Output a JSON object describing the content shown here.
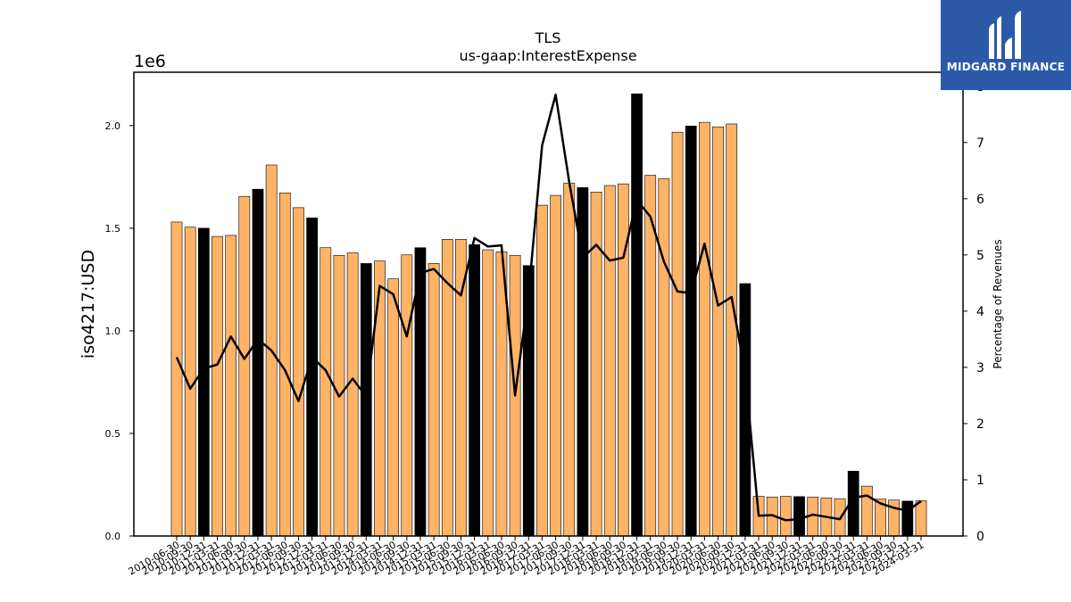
{
  "chart_data": {
    "type": "bar",
    "title": "TLS",
    "subtitle": "us-gaap:InterestExpense",
    "ylabel": "iso4217:USD",
    "y_multiplier": "1e6",
    "y2label": "Percentage of Revenues",
    "ylim": [
      0,
      2260000
    ],
    "y2lim": [
      0,
      8.25
    ],
    "yticks": [
      "0.0",
      "0.5",
      "1.0",
      "1.5",
      "2.0"
    ],
    "y2ticks": [
      "0",
      "1",
      "2",
      "3",
      "4",
      "5",
      "6",
      "7",
      "8"
    ],
    "categories": [
      "2010-06-30",
      "2010-09-30",
      "2010-12-31",
      "2011-03-31",
      "2011-06-30",
      "2011-09-30",
      "2011-12-31",
      "2012-03-31",
      "2012-06-30",
      "2012-09-30",
      "2012-12-31",
      "2013-03-31",
      "2013-06-30",
      "2013-09-30",
      "2013-12-31",
      "2014-03-31",
      "2014-06-30",
      "2014-09-30",
      "2014-12-31",
      "2015-03-31",
      "2015-06-30",
      "2015-09-30",
      "2015-12-31",
      "2016-03-31",
      "2016-06-30",
      "2016-09-30",
      "2016-12-31",
      "2017-03-31",
      "2017-06-30",
      "2017-09-30",
      "2017-12-31",
      "2018-03-31",
      "2018-06-30",
      "2018-09-30",
      "2018-12-31",
      "2019-03-31",
      "2019-06-30",
      "2019-09-30",
      "2019-12-31",
      "2020-03-31",
      "2020-06-30",
      "2020-09-30",
      "2020-12-31",
      "2021-03-31",
      "2021-06-30",
      "2021-09-30",
      "2021-12-31",
      "2022-03-31",
      "2022-06-30",
      "2022-09-30",
      "2022-12-31",
      "2023-03-31",
      "2023-06-30",
      "2023-09-30",
      "2023-12-31",
      "2024-03-31"
    ],
    "visible_xtick_labels": [
      "2010-06-30",
      "2010-09-30",
      "2010-12-31",
      "2011-03-31",
      "2011-06-30",
      "2011-09-30",
      "2011-12-31",
      "2012-03-31",
      "2012-06-30",
      "2012-09-30",
      "2012-12-31",
      "2013-03-31",
      "2013-06-30",
      "2013-09-30",
      "2013-12-31",
      "2014-03-31",
      "2014-06-30",
      "2014-09-30",
      "2014-12-31",
      "2015-03-31",
      "2015-06-30",
      "2015-09-30",
      "2015-12-31",
      "2016-03-31",
      "2016-06-30",
      "2016-09-30",
      "2016-12-31",
      "2017-03-31",
      "2017-06-30",
      "2017-09-30",
      "2017-12-31",
      "2018-03-31",
      "2018-06-30",
      "2018-09-30",
      "2018-12-31",
      "2019-03-31",
      "2019-06-30",
      "2019-09-30",
      "2019-12-31",
      "2020-03-31",
      "2020-06-30",
      "2020-09-30",
      "2020-12-31",
      "2021-03-31",
      "2021-06-30",
      "2021-09-30",
      "2021-12-31",
      "2022-03-31",
      "2022-06-30",
      "2022-09-30",
      "2022-12-31",
      "2023-03-31",
      "2023-06-30",
      "2023-09-30",
      "2023-12-31",
      "2024-03-31"
    ],
    "series": [
      {
        "axis": "left",
        "type": "bar",
        "values": [
          1530000,
          1505000,
          1500000,
          1460000,
          1465000,
          1655000,
          1690000,
          1808000,
          1672000,
          1600000,
          1550000,
          1405000,
          1368000,
          1380000,
          1328000,
          1340000,
          1253000,
          1370000,
          1405000,
          1328000,
          1446000,
          1446000,
          1420000,
          1395000,
          1385000,
          1368000,
          1318000,
          1612000,
          1660000,
          1720000,
          1698000,
          1676000,
          1708000,
          1716000,
          2155000,
          1758000,
          1742000,
          1968000,
          1998000,
          2016000,
          1994000,
          2008000,
          1230000,
          193000,
          190000,
          193000,
          192000,
          190000,
          186000,
          182000,
          316000,
          243000,
          180000,
          175000,
          170000,
          172000
        ],
        "highlight": [
          false,
          false,
          true,
          false,
          false,
          false,
          true,
          false,
          false,
          false,
          true,
          false,
          false,
          false,
          true,
          false,
          false,
          false,
          true,
          false,
          false,
          false,
          true,
          false,
          false,
          false,
          true,
          false,
          false,
          false,
          true,
          false,
          false,
          false,
          true,
          false,
          false,
          false,
          true,
          false,
          false,
          false,
          true,
          false,
          false,
          false,
          true,
          false,
          false,
          false,
          true,
          false,
          false,
          false,
          true,
          false
        ],
        "bar_color": "#ffb366",
        "highlight_color": "#000000"
      },
      {
        "axis": "right",
        "type": "line",
        "values": [
          3.18,
          2.62,
          2.98,
          3.05,
          3.55,
          3.15,
          3.5,
          3.3,
          2.95,
          2.4,
          3.18,
          2.95,
          2.48,
          2.8,
          2.48,
          4.45,
          4.3,
          3.55,
          4.68,
          4.75,
          4.5,
          4.28,
          5.3,
          5.15,
          5.17,
          2.5,
          4.3,
          6.95,
          7.85,
          6.3,
          4.95,
          5.18,
          4.9,
          4.95,
          5.98,
          5.68,
          4.88,
          4.35,
          4.32,
          5.2,
          4.1,
          4.25,
          2.9,
          0.36,
          0.37,
          0.28,
          0.3,
          0.38,
          0.34,
          0.3,
          0.68,
          0.72,
          0.58,
          0.5,
          0.45,
          0.62
        ],
        "color": "#000000"
      }
    ]
  },
  "logo": {
    "text": "MIDGARD FINANCE",
    "background": "#2c5aa8"
  }
}
